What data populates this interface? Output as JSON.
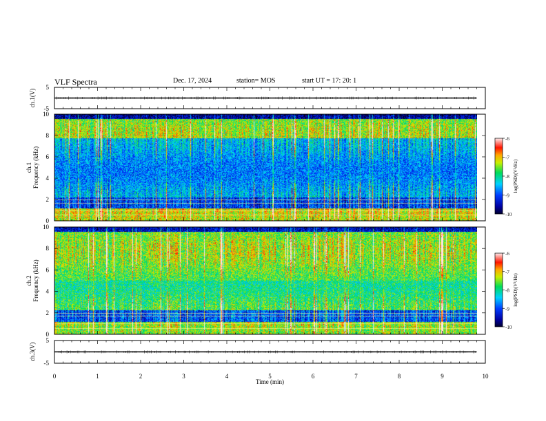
{
  "header": {
    "title": "VLF Spectra",
    "date": "Dec. 17, 2024",
    "station": "station= MOS",
    "start": "start  UT  =   17: 20: 1"
  },
  "chart_data": [
    {
      "type": "line",
      "name": "ch1-waveform",
      "ylabel": "ch.1(V)",
      "ylim": [
        -5,
        5
      ],
      "y_ticks": [
        "5",
        "-5"
      ],
      "xlim": [
        0,
        10
      ],
      "trace_level": 0
    },
    {
      "type": "heatmap",
      "name": "ch1-spectrogram",
      "ylabel": "ch.1\nFrequency  (kHz)",
      "ylim": [
        0,
        10
      ],
      "y_ticks": [
        "0",
        "2",
        "4",
        "6",
        "8",
        "10"
      ],
      "xlim": [
        0,
        9.8
      ],
      "colorbar": {
        "label": "log(PSD)(V²/Hz)",
        "range": [
          -10,
          -6
        ],
        "ticks": [
          "-6",
          "-7",
          "-8",
          "-9",
          "-10"
        ]
      }
    },
    {
      "type": "heatmap",
      "name": "ch2-spectrogram",
      "ylabel": "ch.2\nFrequency  (kHz)",
      "ylim": [
        0,
        10
      ],
      "y_ticks": [
        "0",
        "2",
        "4",
        "6",
        "8",
        "10"
      ],
      "xlim": [
        0,
        9.8
      ],
      "colorbar": {
        "label": "log(PSD)(V²/Hz)",
        "range": [
          -10,
          -6
        ],
        "ticks": [
          "-6",
          "-7",
          "-8",
          "-9",
          "-10"
        ]
      }
    },
    {
      "type": "line",
      "name": "ch3-waveform",
      "ylabel": "ch.3(V)",
      "ylim": [
        -5,
        5
      ],
      "y_ticks": [
        "5",
        "-5"
      ],
      "xlim": [
        0,
        10
      ],
      "trace_level": 0
    }
  ],
  "x_axis": {
    "label": "Time  (min)",
    "ticks": [
      "0",
      "1",
      "2",
      "3",
      "4",
      "5",
      "6",
      "7",
      "8",
      "9",
      "10"
    ],
    "range": [
      0,
      10
    ]
  },
  "colors": {
    "scale": [
      "#ffffff",
      "#ff6060",
      "#ff0000",
      "#ffa000",
      "#ffff00",
      "#00d000",
      "#00ffff",
      "#0000ff",
      "#000040"
    ],
    "frame": "#000000"
  }
}
